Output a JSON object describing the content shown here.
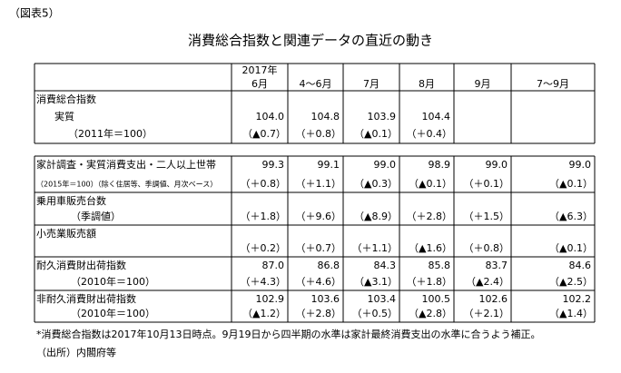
{
  "caption": "（図表5）",
  "title": "消費総合指数と関連データの直近の動き",
  "table": {
    "header_year": "2017年",
    "columns": [
      "6月",
      "4～6月",
      "7月",
      "8月",
      "9月",
      "7～9月"
    ],
    "section1": [
      {
        "label": [
          "消費総合指数",
          "実質",
          "（2011年＝100）"
        ],
        "values": [
          "104.0",
          "104.8",
          "103.9",
          "104.4"
        ],
        "changes": [
          "（▲0.7）",
          "（＋0.8）",
          "（▲0.1）",
          "（＋0.4）"
        ]
      }
    ],
    "section2": [
      {
        "label": [
          "家計調査・実質消費支出・二人以上世帯",
          "（2015年＝100）（除く住居等、季調値、月次ベース）"
        ],
        "values": [
          "99.3",
          "99.1",
          "99.0",
          "98.9",
          "99.0",
          "99.0"
        ],
        "changes": [
          "（＋0.8）",
          "（＋1.1）",
          "（▲0.3）",
          "（▲0.1）",
          "（＋0.1）",
          "（▲0.1）"
        ]
      },
      {
        "label": [
          "乗用車販売台数",
          "（季調値）"
        ],
        "changes": [
          "（＋1.8）",
          "（＋9.6）",
          "（▲8.9）",
          "（＋2.8）",
          "（＋1.5）",
          "（▲6.3）"
        ]
      },
      {
        "label": [
          "小売業販売額"
        ],
        "changes": [
          "（＋0.2）",
          "（＋0.7）",
          "（＋1.1）",
          "（▲1.6）",
          "（＋0.8）",
          "（▲0.1）"
        ]
      },
      {
        "label": [
          "耐久消費財出荷指数",
          "（2010年＝100）"
        ],
        "values": [
          "87.0",
          "86.8",
          "84.3",
          "85.8",
          "83.7",
          "84.6"
        ],
        "changes": [
          "（＋4.3）",
          "（＋4.6）",
          "（▲3.1）",
          "（＋1.8）",
          "（▲2.4）",
          "（▲2.5）"
        ]
      },
      {
        "label": [
          "非耐久消費財出荷指数",
          "（2010年＝100）"
        ],
        "values": [
          "102.9",
          "103.6",
          "103.4",
          "100.5",
          "102.6",
          "102.2"
        ],
        "changes": [
          "（▲1.2）",
          "（＋2.8）",
          "（＋0.5）",
          "（▲2.8）",
          "（＋2.1）",
          "（▲1.4）"
        ]
      }
    ]
  },
  "footnotes": [
    "*消費総合指数は2017年10月13日時点。9月19日から四半期の水準は家計最終消費支出の水準に合うよう補正。",
    "（出所）内閣府等"
  ]
}
